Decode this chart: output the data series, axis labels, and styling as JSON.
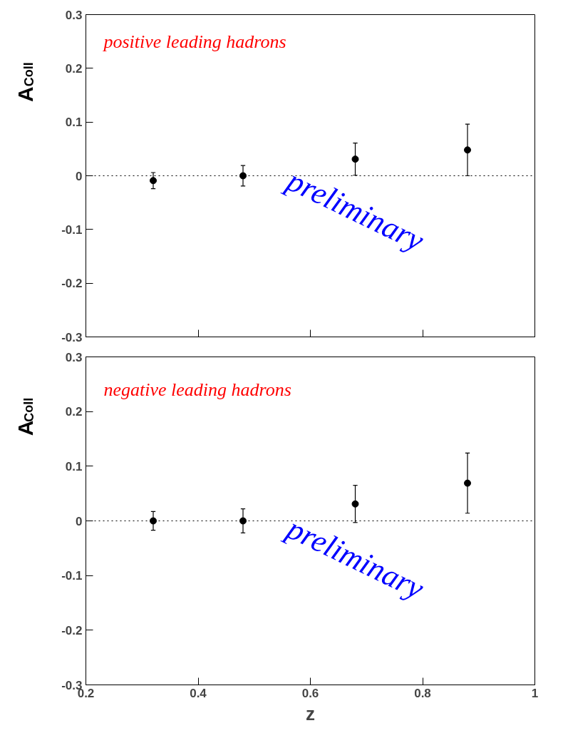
{
  "chart_data": [
    {
      "type": "scatter",
      "x": [
        0.32,
        0.48,
        0.68,
        0.88
      ],
      "series": [
        {
          "color": "#000000",
          "values": [
            -0.009,
            0.0,
            0.031,
            0.048
          ],
          "errors": [
            0.015,
            0.019,
            0.03,
            0.048
          ]
        }
      ],
      "ylabel": "A$_{Coll}$",
      "annotations": [
        "positive leading hadrons",
        "preliminary"
      ],
      "xlim": [
        0.2,
        1.0
      ],
      "ylim": [
        -0.3,
        0.3
      ],
      "xticks": [
        0.2,
        0.4,
        0.6,
        0.8,
        1
      ],
      "yticks": [
        -0.3,
        -0.2,
        -0.1,
        0,
        0.1,
        0.2,
        0.3
      ],
      "tick_labels": "y",
      "marker": "circle",
      "grid": false,
      "ref_lines": [
        {
          "axis": "y",
          "value": 0,
          "line_style": "dotted",
          "color": "#000000"
        }
      ]
    },
    {
      "type": "scatter",
      "x": [
        0.32,
        0.48,
        0.68,
        0.88
      ],
      "series": [
        {
          "color": "#000000",
          "values": [
            0.0,
            0.0,
            0.031,
            0.069
          ],
          "errors": [
            0.017,
            0.022,
            0.034,
            0.055
          ]
        }
      ],
      "xlabel": "z",
      "ylabel": "A$_{Coll}$",
      "annotations": [
        "negative leading hadrons",
        "preliminary"
      ],
      "xlim": [
        0.2,
        1.0
      ],
      "ylim": [
        -0.3,
        0.3
      ],
      "xticks": [
        0.2,
        0.4,
        0.6,
        0.8,
        1
      ],
      "yticks": [
        -0.3,
        -0.2,
        -0.1,
        0,
        0.1,
        0.2,
        0.3
      ],
      "marker": "circle",
      "grid": false,
      "ref_lines": [
        {
          "axis": "y",
          "value": 0,
          "line_style": "dotted",
          "color": "#000000"
        }
      ]
    }
  ]
}
